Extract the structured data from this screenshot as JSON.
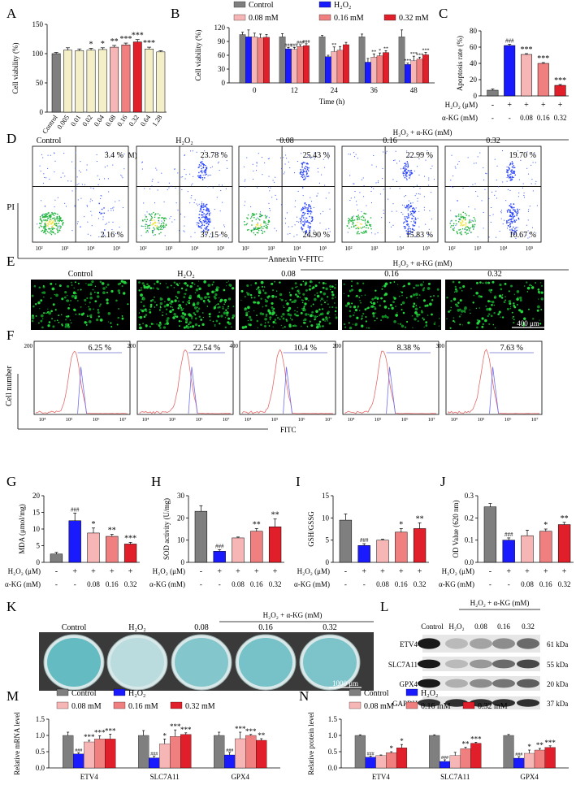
{
  "colors": {
    "gray": "#7f7f7f",
    "blue": "#1a1aff",
    "lightpink": "#f7b6b6",
    "pink": "#f08080",
    "red": "#e01f2a",
    "cream": "#f5efc8",
    "fitcred": "#e66a6a",
    "fitcblue": "#6f6ff0",
    "stain": "#5fb8c0"
  },
  "panels": [
    "A",
    "B",
    "C",
    "D",
    "E",
    "F",
    "G",
    "H",
    "I",
    "J",
    "K",
    "L",
    "M",
    "N"
  ],
  "conditions": [
    "Control",
    "H₂O₂",
    "0.08",
    "0.16",
    "0.32"
  ],
  "combo_label": "H₂O₂ + α-KG (mM)",
  "legend": {
    "control": "Control",
    "h2o2": "H₂O₂",
    "c008": "0.08 mM",
    "c016": "0.16 mM",
    "c032": "0.32 mM"
  },
  "axis_plus": "+",
  "axis_minus": "-",
  "panelA": {
    "ylabel": "Cell viability (%)",
    "xlabel": "Concentration (mM)",
    "categories": [
      "Control",
      "0.005",
      "0.01",
      "0.02",
      "0.04",
      "0.08",
      "0.16",
      "0.32",
      "0.64",
      "1.28"
    ],
    "values": [
      100,
      106,
      105,
      106,
      107,
      111,
      115,
      120,
      108,
      103
    ],
    "errs": [
      2,
      4,
      3,
      3,
      3,
      3,
      3,
      4,
      3,
      2
    ],
    "sig": [
      "",
      "",
      "",
      "*",
      "*",
      "**",
      "***",
      "***",
      "***",
      ""
    ],
    "yticks": [
      "0",
      "50",
      "100",
      "150"
    ],
    "ylim": [
      0,
      150
    ]
  },
  "panelB": {
    "ylabel": "Cell viability (%)",
    "xlabel": "Time (h)",
    "categories": [
      "0",
      "12",
      "24",
      "36",
      "48"
    ],
    "ylim": [
      0,
      120
    ],
    "yticks": [
      "0",
      "30",
      "60",
      "90",
      "120"
    ],
    "series": [
      {
        "name": "Control",
        "values": [
          105,
          100,
          100,
          100,
          100
        ],
        "errs": [
          5,
          7,
          3,
          6,
          15
        ]
      },
      {
        "name": "H₂O₂",
        "values": [
          100,
          74,
          57,
          45,
          40
        ],
        "errs": [
          15,
          3,
          3,
          8,
          3
        ]
      },
      {
        "name": "0.08 mM",
        "values": [
          100,
          73,
          68,
          56,
          48
        ],
        "errs": [
          8,
          4,
          10,
          7,
          10
        ]
      },
      {
        "name": "0.16 mM",
        "values": [
          98,
          79,
          71,
          59,
          52
        ],
        "errs": [
          8,
          4,
          8,
          6,
          4
        ]
      },
      {
        "name": "0.32 mM",
        "values": [
          99,
          81,
          83,
          66,
          61
        ],
        "errs": [
          6,
          4,
          5,
          4,
          5
        ]
      }
    ],
    "sig": [
      [
        "",
        "",
        "",
        "",
        ""
      ],
      [
        "",
        "###",
        "",
        "",
        "***"
      ],
      [
        "",
        "###",
        "**",
        "**",
        "***"
      ],
      [
        "",
        "###",
        "",
        "*",
        "***"
      ],
      [
        "",
        "###",
        "",
        "**",
        "***"
      ]
    ]
  },
  "panelC": {
    "ylabel": "Apoptosis rate (%)",
    "ylim": [
      0,
      80
    ],
    "yticks": [
      "0",
      "20",
      "40",
      "60",
      "80"
    ],
    "values": [
      7,
      62,
      51,
      40,
      13
    ],
    "errs": [
      1.5,
      1.5,
      1,
      1,
      1
    ],
    "sig": [
      "",
      "###",
      "***",
      "***",
      "***"
    ],
    "row1_label": "H₂O₂ (μM)",
    "row1": [
      "-",
      "+",
      "+",
      "+",
      "+"
    ],
    "row2_label": "α-KG (mM)",
    "row2": [
      "-",
      "-",
      "0.08",
      "0.16",
      "0.32"
    ]
  },
  "panelD": {
    "xlabel": "Annexin V-FITC",
    "ylabel": "PI",
    "ticks": [
      "10²",
      "10³",
      "10⁴",
      "10⁵"
    ],
    "ur": [
      "3.4 %",
      "23.78 %",
      "25.43 %",
      "22.99 %",
      "19.70 %"
    ],
    "lr": [
      "2.16 %",
      "37.15 %",
      "24.90 %",
      "15.83 %",
      "10.67 %"
    ]
  },
  "panelE": {
    "scale": "400 μm"
  },
  "panelF": {
    "xlabel": "FITC",
    "ylabel": "Cell number",
    "pcts": [
      "6.25 %",
      "22.54 %",
      "10.4 %",
      "8.38 %",
      "7.63 %"
    ],
    "ymax": [
      "200",
      "200",
      "400",
      "200",
      "300"
    ],
    "xticks": [
      "10⁴",
      "10⁵",
      "10⁶",
      "10⁷"
    ]
  },
  "panelG": {
    "ylabel": "MDA (μmol/mg)",
    "ylim": [
      0,
      20
    ],
    "yticks": [
      "0",
      "5",
      "10",
      "15",
      "20"
    ],
    "values": [
      2.5,
      12.5,
      8.8,
      7.8,
      5.5
    ],
    "errs": [
      0.5,
      2.3,
      1.5,
      0.6,
      0.5
    ],
    "sig": [
      "",
      "###",
      "*",
      "**",
      "***"
    ]
  },
  "panelH": {
    "ylabel": "SOD activity (U/mg)",
    "ylim": [
      0,
      30
    ],
    "yticks": [
      "0",
      "10",
      "20",
      "30"
    ],
    "values": [
      23,
      5,
      11,
      14,
      16
    ],
    "errs": [
      2.5,
      0.7,
      0.4,
      1.2,
      3.5
    ],
    "sig": [
      "",
      "###",
      "",
      "**",
      "**"
    ]
  },
  "panelI": {
    "ylabel": "GSH/GSSG",
    "ylim": [
      0,
      15
    ],
    "yticks": [
      "0",
      "5",
      "10",
      "15"
    ],
    "values": [
      9.5,
      3.8,
      5,
      6.8,
      7.6
    ],
    "errs": [
      1.4,
      0.4,
      0.2,
      0.8,
      1.3
    ],
    "sig": [
      "",
      "###",
      "",
      "*",
      "**"
    ]
  },
  "panelJ": {
    "ylabel": "OD Value (620 nm)",
    "ylim": [
      0,
      0.3
    ],
    "yticks": [
      "0.0",
      "0.1",
      "0.2",
      "0.3"
    ],
    "values": [
      0.25,
      0.1,
      0.12,
      0.14,
      0.17
    ],
    "errs": [
      0.015,
      0.01,
      0.025,
      0.01,
      0.01
    ],
    "sig": [
      "",
      "###",
      "",
      "*",
      "**"
    ]
  },
  "rows_common": {
    "row1_label": "H₂O₂ (μM)",
    "row1": [
      "-",
      "+",
      "+",
      "+",
      "+"
    ],
    "row2_label": "α-KG (mM)",
    "row2": [
      "-",
      "-",
      "0.08",
      "0.16",
      "0.32"
    ]
  },
  "panelK": {
    "scale": "1000 μm"
  },
  "panelM": {
    "lanes": [
      "Control",
      "H₂O₂",
      "0.08",
      "0.16",
      "0.32"
    ],
    "bands": [
      {
        "name": "ETV4",
        "kda": "61 kDa",
        "intensity": [
          1,
          0.3,
          0.4,
          0.5,
          0.65
        ]
      },
      {
        "name": "SLC7A11",
        "kda": "55 kDa",
        "intensity": [
          1,
          0.3,
          0.45,
          0.65,
          0.8
        ]
      },
      {
        "name": "GPX4",
        "kda": "20 kDa",
        "intensity": [
          1,
          0.35,
          0.5,
          0.6,
          0.7
        ]
      },
      {
        "name": "GAPDH",
        "kda": "37 kDa",
        "intensity": [
          0.9,
          0.9,
          0.9,
          0.9,
          0.9
        ]
      }
    ]
  },
  "panelL": {
    "ylabel": "Relative mRNA level",
    "ylim": [
      0,
      1.5
    ],
    "yticks": [
      "0.0",
      "0.5",
      "1.0",
      "1.5"
    ],
    "categories": [
      "ETV4",
      "SLC7A11",
      "GPX4"
    ],
    "series": [
      {
        "name": "Control",
        "values": [
          1,
          1,
          1
        ],
        "errs": [
          0.1,
          0.15,
          0.1
        ]
      },
      {
        "name": "H₂O₂",
        "values": [
          0.43,
          0.31,
          0.4
        ],
        "errs": [
          0.04,
          0.05,
          0.08
        ]
      },
      {
        "name": "0.08 mM",
        "values": [
          0.8,
          0.74,
          0.9
        ],
        "errs": [
          0.05,
          0.15,
          0.2
        ]
      },
      {
        "name": "0.16 mM",
        "values": [
          0.89,
          0.97,
          1
        ],
        "errs": [
          0.1,
          0.2,
          0.03
        ]
      },
      {
        "name": "0.32 mM",
        "values": [
          0.89,
          1.03,
          0.85
        ],
        "errs": [
          0.15,
          0.05,
          0.05
        ]
      }
    ],
    "sig": [
      [
        "",
        "",
        ""
      ],
      [
        "###",
        "###",
        "###"
      ],
      [
        "***",
        "*",
        "***"
      ],
      [
        "***",
        "***",
        "***"
      ],
      [
        "***",
        "***",
        "**"
      ]
    ]
  },
  "panelN": {
    "ylabel": "Relative protein level",
    "ylim": [
      0,
      1.5
    ],
    "yticks": [
      "0.0",
      "0.5",
      "1.0",
      "1.5"
    ],
    "categories": [
      "ETV4",
      "SLC7A11",
      "GPX4"
    ],
    "series": [
      {
        "name": "Control",
        "values": [
          1,
          1,
          1
        ],
        "errs": [
          0.02,
          0.02,
          0.03
        ]
      },
      {
        "name": "H₂O₂",
        "values": [
          0.33,
          0.2,
          0.3
        ],
        "errs": [
          0.03,
          0.05,
          0.05
        ]
      },
      {
        "name": "0.08 mM",
        "values": [
          0.38,
          0.38,
          0.45
        ],
        "errs": [
          0.02,
          0.1,
          0.1
        ]
      },
      {
        "name": "0.16 mM",
        "values": [
          0.47,
          0.59,
          0.55
        ],
        "errs": [
          0.03,
          0.05,
          0.05
        ]
      },
      {
        "name": "0.32 mM",
        "values": [
          0.62,
          0.76,
          0.63
        ],
        "errs": [
          0.1,
          0.03,
          0.05
        ]
      }
    ],
    "sig": [
      [
        "",
        "",
        ""
      ],
      [
        "###",
        "###",
        "###"
      ],
      [
        "",
        "",
        "*"
      ],
      [
        "*",
        "**",
        "**"
      ],
      [
        "*",
        "***",
        "***"
      ]
    ]
  },
  "chart_data": [
    {
      "type": "bar",
      "panel": "A",
      "categories": [
        "Control",
        "0.005",
        "0.01",
        "0.02",
        "0.04",
        "0.08",
        "0.16",
        "0.32",
        "0.64",
        "1.28"
      ],
      "values": [
        100,
        106,
        105,
        106,
        107,
        111,
        115,
        120,
        108,
        103
      ],
      "ylabel": "Cell viability (%)",
      "xlabel": "Concentration (mM)",
      "ylim": [
        0,
        150
      ]
    },
    {
      "type": "bar",
      "panel": "B",
      "categories": [
        "0",
        "12",
        "24",
        "36",
        "48"
      ],
      "series": [
        {
          "name": "Control",
          "values": [
            105,
            100,
            100,
            100,
            100
          ]
        },
        {
          "name": "H₂O₂",
          "values": [
            100,
            74,
            57,
            45,
            40
          ]
        },
        {
          "name": "0.08 mM",
          "values": [
            100,
            73,
            68,
            56,
            48
          ]
        },
        {
          "name": "0.16 mM",
          "values": [
            98,
            79,
            71,
            59,
            52
          ]
        },
        {
          "name": "0.32 mM",
          "values": [
            99,
            81,
            83,
            66,
            61
          ]
        }
      ],
      "ylabel": "Cell viability (%)",
      "xlabel": "Time (h)",
      "ylim": [
        0,
        120
      ]
    },
    {
      "type": "bar",
      "panel": "C",
      "values": [
        7,
        62,
        51,
        40,
        13
      ],
      "ylabel": "Apoptosis rate (%)",
      "ylim": [
        0,
        80
      ]
    },
    {
      "type": "bar",
      "panel": "G",
      "values": [
        2.5,
        12.5,
        8.8,
        7.8,
        5.5
      ],
      "ylabel": "MDA (μmol/mg)",
      "ylim": [
        0,
        20
      ]
    },
    {
      "type": "bar",
      "panel": "H",
      "values": [
        23,
        5,
        11,
        14,
        16
      ],
      "ylabel": "SOD activity (U/mg)",
      "ylim": [
        0,
        30
      ]
    },
    {
      "type": "bar",
      "panel": "I",
      "values": [
        9.5,
        3.8,
        5,
        6.8,
        7.6
      ],
      "ylabel": "GSH/GSSG",
      "ylim": [
        0,
        15
      ]
    },
    {
      "type": "bar",
      "panel": "J",
      "values": [
        0.25,
        0.1,
        0.12,
        0.14,
        0.17
      ],
      "ylabel": "OD Value (620 nm)",
      "ylim": [
        0,
        0.3
      ]
    },
    {
      "type": "bar",
      "panel": "L",
      "categories": [
        "ETV4",
        "SLC7A11",
        "GPX4"
      ],
      "series": [
        {
          "name": "Control",
          "values": [
            1,
            1,
            1
          ]
        },
        {
          "name": "H₂O₂",
          "values": [
            0.43,
            0.31,
            0.4
          ]
        },
        {
          "name": "0.08 mM",
          "values": [
            0.8,
            0.74,
            0.9
          ]
        },
        {
          "name": "0.16 mM",
          "values": [
            0.89,
            0.97,
            1
          ]
        },
        {
          "name": "0.32 mM",
          "values": [
            0.89,
            1.03,
            0.85
          ]
        }
      ],
      "ylabel": "Relative mRNA level",
      "ylim": [
        0,
        1.5
      ]
    },
    {
      "type": "bar",
      "panel": "N",
      "categories": [
        "ETV4",
        "SLC7A11",
        "GPX4"
      ],
      "series": [
        {
          "name": "Control",
          "values": [
            1,
            1,
            1
          ]
        },
        {
          "name": "H₂O₂",
          "values": [
            0.33,
            0.2,
            0.3
          ]
        },
        {
          "name": "0.08 mM",
          "values": [
            0.38,
            0.38,
            0.45
          ]
        },
        {
          "name": "0.16 mM",
          "values": [
            0.47,
            0.59,
            0.55
          ]
        },
        {
          "name": "0.32 mM",
          "values": [
            0.62,
            0.76,
            0.63
          ]
        }
      ],
      "ylabel": "Relative protein level",
      "ylim": [
        0,
        1.5
      ]
    }
  ]
}
